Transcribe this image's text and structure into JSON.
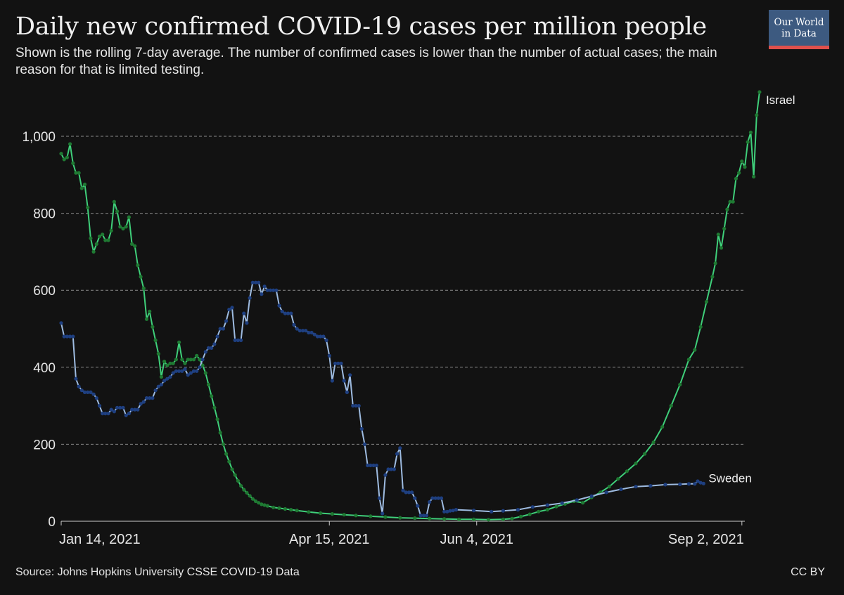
{
  "header": {
    "title": "Daily new confirmed COVID-19 cases per million people",
    "subtitle": "Shown is the rolling 7-day average. The number of confirmed cases is lower than the number of actual cases; the main reason for that is limited testing.",
    "logo_line1": "Our World",
    "logo_line2": "in Data"
  },
  "footer": {
    "source": "Source: Johns Hopkins University CSSE COVID-19 Data",
    "license": "CC BY"
  },
  "colors": {
    "israel_line": "#3fcf7a",
    "israel_points": "#1f7a33",
    "sweden_line": "#9ebbe0",
    "sweden_points": "#1e3f80",
    "grid": "#8a8a8a",
    "axis": "#cccccc"
  },
  "chart_data": {
    "type": "line",
    "title": "Daily new confirmed COVID-19 cases per million people",
    "xlabel": "",
    "ylabel": "",
    "x_domain_days": [
      0,
      232
    ],
    "ylim": [
      0,
      1000
    ],
    "yticks": [
      0,
      200,
      400,
      600,
      800,
      1000
    ],
    "ytick_labels": [
      "0",
      "200",
      "400",
      "600",
      "800",
      "1,000"
    ],
    "xticks": [
      {
        "day": 0,
        "label": "Jan 14, 2021"
      },
      {
        "day": 91,
        "label": "Apr 15, 2021"
      },
      {
        "day": 141,
        "label": "Jun 4, 2021"
      },
      {
        "day": 231,
        "label": "Sep 2, 2021"
      }
    ],
    "grid": true,
    "legend": "labels at line ends (right)",
    "series": [
      {
        "name": "Israel",
        "points": [
          [
            0,
            955
          ],
          [
            1,
            940
          ],
          [
            2,
            945
          ],
          [
            3,
            980
          ],
          [
            4,
            930
          ],
          [
            5,
            905
          ],
          [
            6,
            905
          ],
          [
            7,
            865
          ],
          [
            8,
            875
          ],
          [
            9,
            815
          ],
          [
            10,
            735
          ],
          [
            11,
            700
          ],
          [
            12,
            720
          ],
          [
            13,
            740
          ],
          [
            14,
            745
          ],
          [
            15,
            730
          ],
          [
            16,
            730
          ],
          [
            17,
            755
          ],
          [
            18,
            830
          ],
          [
            19,
            805
          ],
          [
            20,
            765
          ],
          [
            21,
            760
          ],
          [
            22,
            765
          ],
          [
            23,
            790
          ],
          [
            24,
            720
          ],
          [
            25,
            715
          ],
          [
            26,
            665
          ],
          [
            27,
            635
          ],
          [
            28,
            605
          ],
          [
            29,
            525
          ],
          [
            30,
            545
          ],
          [
            31,
            505
          ],
          [
            32,
            470
          ],
          [
            33,
            435
          ],
          [
            34,
            375
          ],
          [
            35,
            415
          ],
          [
            36,
            405
          ],
          [
            37,
            410
          ],
          [
            38,
            410
          ],
          [
            39,
            420
          ],
          [
            40,
            465
          ],
          [
            41,
            420
          ],
          [
            42,
            410
          ],
          [
            43,
            420
          ],
          [
            44,
            420
          ],
          [
            45,
            420
          ],
          [
            46,
            430
          ],
          [
            47,
            420
          ],
          [
            48,
            405
          ],
          [
            49,
            385
          ],
          [
            50,
            355
          ],
          [
            51,
            325
          ],
          [
            52,
            295
          ],
          [
            53,
            265
          ],
          [
            54,
            230
          ],
          [
            55,
            200
          ],
          [
            56,
            175
          ],
          [
            57,
            155
          ],
          [
            58,
            135
          ],
          [
            59,
            120
          ],
          [
            60,
            105
          ],
          [
            61,
            92
          ],
          [
            62,
            82
          ],
          [
            63,
            74
          ],
          [
            64,
            66
          ],
          [
            65,
            58
          ],
          [
            66,
            52
          ],
          [
            67,
            48
          ],
          [
            68,
            44
          ],
          [
            69,
            42
          ],
          [
            70,
            40
          ],
          [
            72,
            36
          ],
          [
            74,
            34
          ],
          [
            76,
            32
          ],
          [
            78,
            30
          ],
          [
            80,
            28
          ],
          [
            84,
            24
          ],
          [
            88,
            21
          ],
          [
            92,
            19
          ],
          [
            96,
            17
          ],
          [
            100,
            15
          ],
          [
            105,
            13
          ],
          [
            110,
            11
          ],
          [
            115,
            9
          ],
          [
            120,
            8
          ],
          [
            125,
            7
          ],
          [
            130,
            6
          ],
          [
            135,
            5
          ],
          [
            140,
            5
          ],
          [
            145,
            4
          ],
          [
            150,
            5
          ],
          [
            153,
            7
          ],
          [
            156,
            12
          ],
          [
            159,
            18
          ],
          [
            162,
            25
          ],
          [
            165,
            30
          ],
          [
            168,
            38
          ],
          [
            171,
            45
          ],
          [
            174,
            52
          ],
          [
            177,
            48
          ],
          [
            180,
            62
          ],
          [
            183,
            75
          ],
          [
            186,
            90
          ],
          [
            189,
            110
          ],
          [
            192,
            130
          ],
          [
            195,
            150
          ],
          [
            198,
            175
          ],
          [
            201,
            205
          ],
          [
            204,
            245
          ],
          [
            207,
            300
          ],
          [
            210,
            355
          ],
          [
            213,
            420
          ],
          [
            215,
            445
          ],
          [
            217,
            505
          ],
          [
            219,
            570
          ],
          [
            221,
            635
          ],
          [
            222,
            670
          ],
          [
            223,
            745
          ],
          [
            224,
            710
          ],
          [
            225,
            760
          ],
          [
            226,
            810
          ],
          [
            227,
            830
          ],
          [
            228,
            830
          ],
          [
            229,
            890
          ],
          [
            230,
            905
          ],
          [
            231,
            935
          ],
          [
            232,
            920
          ],
          [
            233,
            985
          ],
          [
            234,
            1010
          ],
          [
            235,
            895
          ],
          [
            236,
            1055
          ],
          [
            237,
            1115
          ]
        ]
      },
      {
        "name": "Sweden",
        "points": [
          [
            0,
            515
          ],
          [
            1,
            480
          ],
          [
            2,
            480
          ],
          [
            3,
            480
          ],
          [
            4,
            480
          ],
          [
            5,
            370
          ],
          [
            6,
            350
          ],
          [
            7,
            340
          ],
          [
            8,
            335
          ],
          [
            9,
            335
          ],
          [
            10,
            335
          ],
          [
            11,
            330
          ],
          [
            12,
            320
          ],
          [
            13,
            300
          ],
          [
            14,
            280
          ],
          [
            15,
            280
          ],
          [
            16,
            280
          ],
          [
            17,
            290
          ],
          [
            18,
            285
          ],
          [
            19,
            295
          ],
          [
            20,
            295
          ],
          [
            21,
            295
          ],
          [
            22,
            275
          ],
          [
            23,
            280
          ],
          [
            24,
            290
          ],
          [
            25,
            290
          ],
          [
            26,
            290
          ],
          [
            27,
            305
          ],
          [
            28,
            310
          ],
          [
            29,
            320
          ],
          [
            30,
            320
          ],
          [
            31,
            320
          ],
          [
            32,
            340
          ],
          [
            33,
            350
          ],
          [
            34,
            355
          ],
          [
            35,
            365
          ],
          [
            36,
            370
          ],
          [
            37,
            375
          ],
          [
            38,
            385
          ],
          [
            39,
            390
          ],
          [
            40,
            390
          ],
          [
            41,
            390
          ],
          [
            42,
            395
          ],
          [
            43,
            380
          ],
          [
            44,
            385
          ],
          [
            45,
            390
          ],
          [
            46,
            390
          ],
          [
            47,
            400
          ],
          [
            48,
            420
          ],
          [
            49,
            440
          ],
          [
            50,
            450
          ],
          [
            51,
            450
          ],
          [
            52,
            460
          ],
          [
            53,
            480
          ],
          [
            54,
            500
          ],
          [
            55,
            500
          ],
          [
            56,
            520
          ],
          [
            57,
            550
          ],
          [
            58,
            555
          ],
          [
            59,
            470
          ],
          [
            60,
            470
          ],
          [
            61,
            470
          ],
          [
            62,
            540
          ],
          [
            63,
            515
          ],
          [
            64,
            580
          ],
          [
            65,
            620
          ],
          [
            66,
            620
          ],
          [
            67,
            620
          ],
          [
            68,
            590
          ],
          [
            69,
            610
          ],
          [
            70,
            600
          ],
          [
            71,
            600
          ],
          [
            72,
            600
          ],
          [
            73,
            600
          ],
          [
            74,
            560
          ],
          [
            75,
            545
          ],
          [
            76,
            540
          ],
          [
            77,
            540
          ],
          [
            78,
            540
          ],
          [
            79,
            510
          ],
          [
            80,
            500
          ],
          [
            81,
            495
          ],
          [
            82,
            495
          ],
          [
            83,
            495
          ],
          [
            84,
            490
          ],
          [
            85,
            490
          ],
          [
            86,
            485
          ],
          [
            87,
            480
          ],
          [
            88,
            480
          ],
          [
            89,
            480
          ],
          [
            90,
            470
          ],
          [
            91,
            430
          ],
          [
            92,
            365
          ],
          [
            93,
            410
          ],
          [
            94,
            410
          ],
          [
            95,
            410
          ],
          [
            96,
            365
          ],
          [
            97,
            335
          ],
          [
            98,
            380
          ],
          [
            99,
            300
          ],
          [
            100,
            300
          ],
          [
            101,
            300
          ],
          [
            102,
            240
          ],
          [
            103,
            200
          ],
          [
            104,
            145
          ],
          [
            105,
            145
          ],
          [
            106,
            145
          ],
          [
            107,
            145
          ],
          [
            108,
            60
          ],
          [
            109,
            20
          ],
          [
            110,
            120
          ],
          [
            111,
            135
          ],
          [
            112,
            135
          ],
          [
            113,
            135
          ],
          [
            114,
            175
          ],
          [
            115,
            190
          ],
          [
            116,
            80
          ],
          [
            117,
            75
          ],
          [
            118,
            75
          ],
          [
            119,
            75
          ],
          [
            120,
            60
          ],
          [
            121,
            40
          ],
          [
            122,
            15
          ],
          [
            123,
            15
          ],
          [
            124,
            15
          ],
          [
            125,
            50
          ],
          [
            126,
            60
          ],
          [
            127,
            60
          ],
          [
            128,
            60
          ],
          [
            129,
            60
          ],
          [
            130,
            25
          ],
          [
            131,
            25
          ],
          [
            132,
            27
          ],
          [
            133,
            28
          ],
          [
            134,
            30
          ],
          [
            140,
            28
          ],
          [
            146,
            25
          ],
          [
            150,
            27
          ],
          [
            155,
            30
          ],
          [
            160,
            37
          ],
          [
            165,
            42
          ],
          [
            170,
            47
          ],
          [
            175,
            55
          ],
          [
            180,
            65
          ],
          [
            185,
            75
          ],
          [
            190,
            83
          ],
          [
            195,
            90
          ],
          [
            200,
            92
          ],
          [
            205,
            95
          ],
          [
            210,
            96
          ],
          [
            213,
            97
          ],
          [
            215,
            97
          ],
          [
            216,
            104
          ],
          [
            217,
            100
          ],
          [
            218,
            98
          ]
        ]
      }
    ]
  }
}
